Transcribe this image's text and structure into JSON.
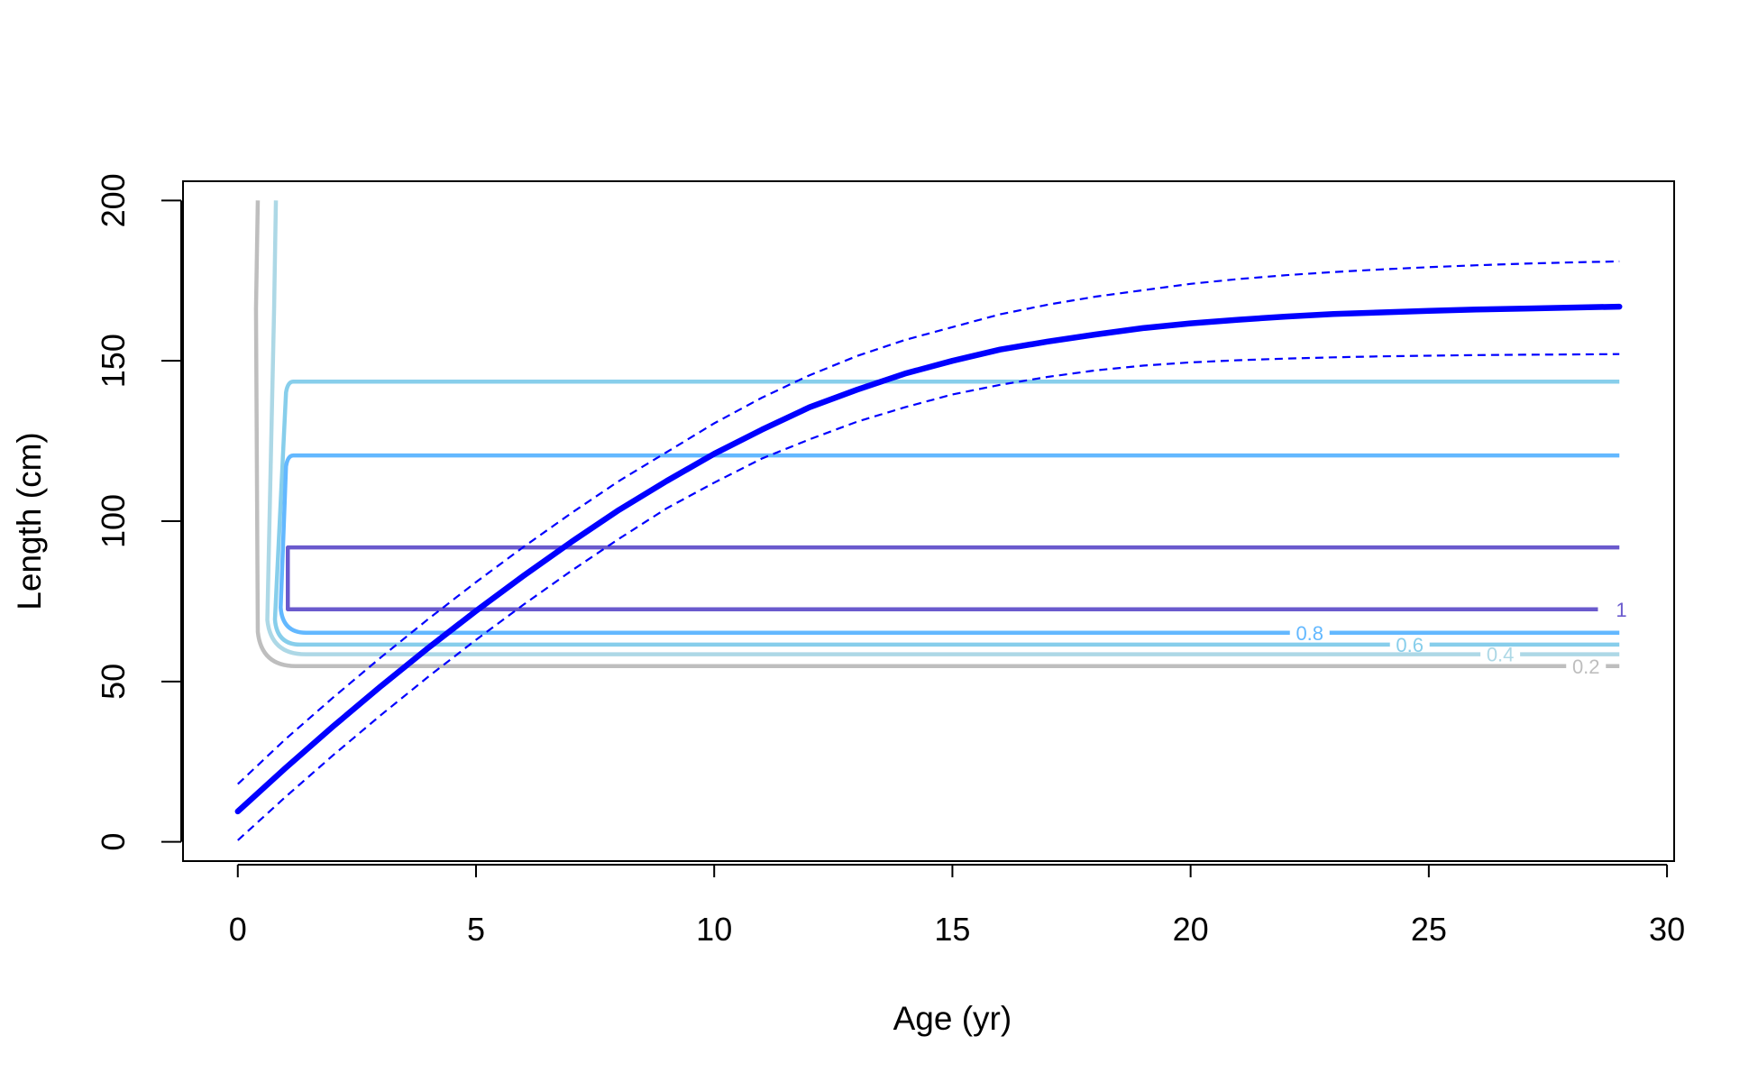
{
  "chart_data": {
    "type": "line",
    "xlabel": "Age (yr)",
    "ylabel": "Length (cm)",
    "xlim": [
      -1.15,
      30.15
    ],
    "ylim": [
      -6,
      206
    ],
    "x_ticks": [
      0,
      5,
      10,
      15,
      20,
      25,
      30
    ],
    "y_ticks": [
      0,
      50,
      100,
      150,
      200
    ],
    "x_tick_labels": [
      "0",
      "5",
      "10",
      "15",
      "20",
      "25",
      "30"
    ],
    "y_tick_labels": [
      "0",
      "50",
      "100",
      "150",
      "200"
    ],
    "grid": false,
    "legend": "none",
    "growth_curve": {
      "color": "#0000FF",
      "x": [
        0,
        1,
        2,
        3,
        4,
        5,
        6,
        7,
        8,
        9,
        10,
        11,
        12,
        13,
        14,
        15,
        16,
        17,
        18,
        19,
        20,
        21,
        22,
        23,
        24,
        25,
        26,
        27,
        28,
        29
      ],
      "mean": [
        9.5,
        23,
        36,
        48.5,
        60.5,
        72,
        83,
        93.5,
        103.5,
        112.5,
        121,
        128.5,
        135.5,
        141,
        146,
        150,
        153.5,
        156,
        158.2,
        160.2,
        161.7,
        162.8,
        163.8,
        164.6,
        165.1,
        165.6,
        166,
        166.3,
        166.6,
        166.9
      ],
      "upper": [
        18,
        32,
        45,
        57.5,
        69.5,
        81,
        92,
        102.5,
        112.5,
        121.5,
        130.5,
        138.5,
        145.5,
        151.5,
        156.5,
        160.5,
        164.5,
        167.5,
        170,
        172,
        174,
        175.5,
        176.7,
        177.7,
        178.5,
        179.2,
        179.8,
        180.3,
        180.7,
        181
      ],
      "lower": [
        0.5,
        14,
        27,
        39.5,
        51.5,
        63,
        74,
        84.5,
        94.5,
        104,
        112,
        119.5,
        125.5,
        131,
        135.5,
        139.5,
        142.5,
        145,
        147,
        148.5,
        149.5,
        150.2,
        150.7,
        151.1,
        151.4,
        151.6,
        151.8,
        151.9,
        152,
        152.1
      ]
    },
    "contours": [
      {
        "label": "0.2",
        "color": "#BEBEBE",
        "level": 0.2,
        "x_left": 0.42,
        "x_top": 0.42,
        "y_bottom": 54.8,
        "y_top": 200,
        "label_x": 28.3
      },
      {
        "label": "0.4",
        "color": "#ADD8E6",
        "level": 0.4,
        "x_left": 0.62,
        "x_top": 0.8,
        "y_bottom": 58.5,
        "y_top": 200,
        "label_x": 26.5
      },
      {
        "label": "0.6",
        "color": "#87CEEB",
        "level": 0.6,
        "x_left": 0.78,
        "x_top": 1.05,
        "y_bottom": 61.5,
        "y_top": 143.5,
        "label_x": 24.6
      },
      {
        "label": "0.8",
        "color": "#63B8FF",
        "level": 0.8,
        "x_left": 0.9,
        "x_top": 1.05,
        "y_bottom": 65.2,
        "y_top": 120.5,
        "label_x": 22.5
      },
      {
        "label": "1",
        "color": "#6A5ACD",
        "level": 1.0,
        "x_left": 1.05,
        "x_top": 1.05,
        "y_bottom": 72.5,
        "y_top": 91.8,
        "label_x": 28.7
      }
    ],
    "contour_x_right": 29
  }
}
